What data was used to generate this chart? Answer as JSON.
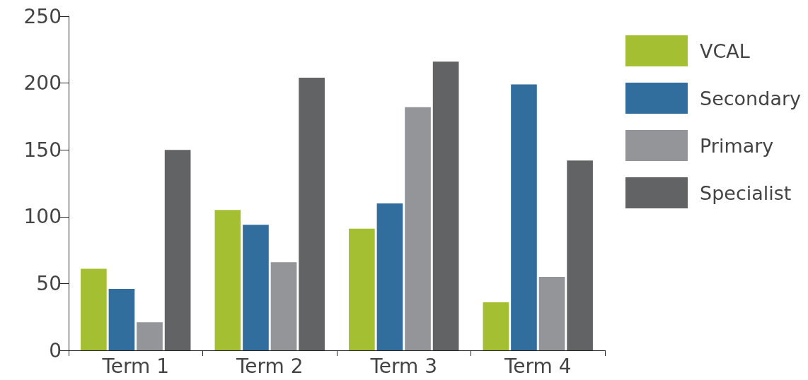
{
  "chart_data": {
    "type": "bar",
    "categories": [
      "Term 1",
      "Term 2",
      "Term 3",
      "Term 4"
    ],
    "series": [
      {
        "name": "VCAL",
        "color": "#a4bf32",
        "values": [
          61,
          105,
          91,
          36
        ]
      },
      {
        "name": "Secondary",
        "color": "#316e9e",
        "values": [
          46,
          94,
          110,
          199
        ]
      },
      {
        "name": "Primary",
        "color": "#939598",
        "values": [
          21,
          66,
          182,
          55
        ]
      },
      {
        "name": "Specialist",
        "color": "#626365",
        "values": [
          150,
          204,
          216,
          142
        ]
      }
    ],
    "ylim": [
      0,
      250
    ],
    "yticks": [
      0,
      50,
      100,
      150,
      200,
      250
    ],
    "grid": false,
    "legend": "top right"
  }
}
